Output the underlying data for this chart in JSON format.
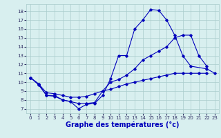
{
  "title": "Graphe des températures (°c)",
  "background_color": "#d8efef",
  "grid_color": "#aacccc",
  "line_color": "#0000bb",
  "xlim": [
    -0.5,
    23.5
  ],
  "ylim": [
    6.5,
    18.8
  ],
  "xticks": [
    0,
    1,
    2,
    3,
    4,
    5,
    6,
    7,
    8,
    9,
    10,
    11,
    12,
    13,
    14,
    15,
    16,
    17,
    18,
    19,
    20,
    21,
    22,
    23
  ],
  "yticks": [
    7,
    8,
    9,
    10,
    11,
    12,
    13,
    14,
    15,
    16,
    17,
    18
  ],
  "series": [
    [
      10.5,
      9.8,
      8.5,
      8.5,
      8.0,
      7.8,
      7.0,
      7.5,
      7.6,
      8.5,
      10.4,
      13.0,
      13.0,
      16.0,
      17.0,
      18.2,
      18.1,
      17.0,
      15.3,
      13.0,
      11.8,
      11.5,
      11.0
    ],
    [
      10.5,
      9.7,
      8.5,
      8.4,
      8.0,
      7.8,
      7.6,
      7.6,
      7.7,
      9.0,
      10.0,
      10.3,
      10.8,
      11.5,
      12.5,
      13.0,
      13.5,
      14.0,
      15.0,
      15.3,
      15.3,
      13.0,
      11.8
    ],
    [
      10.5,
      9.8,
      8.8,
      8.7,
      8.5,
      8.3,
      8.3,
      8.4,
      8.7,
      9.0,
      9.2,
      9.5,
      9.8,
      10.0,
      10.2,
      10.4,
      10.6,
      10.8,
      11.0,
      11.0,
      11.0,
      11.0,
      11.0
    ]
  ],
  "series_x": [
    [
      0,
      1,
      2,
      3,
      4,
      5,
      6,
      7,
      8,
      9,
      10,
      11,
      12,
      13,
      14,
      15,
      16,
      17,
      18,
      19,
      20,
      22,
      23
    ],
    [
      0,
      1,
      2,
      3,
      4,
      5,
      6,
      7,
      8,
      9,
      10,
      11,
      12,
      13,
      14,
      15,
      16,
      17,
      18,
      19,
      20,
      21,
      22
    ],
    [
      0,
      1,
      2,
      3,
      4,
      5,
      6,
      7,
      8,
      9,
      10,
      11,
      12,
      13,
      14,
      15,
      16,
      17,
      18,
      19,
      20,
      21,
      22
    ]
  ],
  "xlabel_color": "#0000bb",
  "xlabel_fontsize": 7,
  "tick_fontsize": 5,
  "tick_color": "#333366"
}
